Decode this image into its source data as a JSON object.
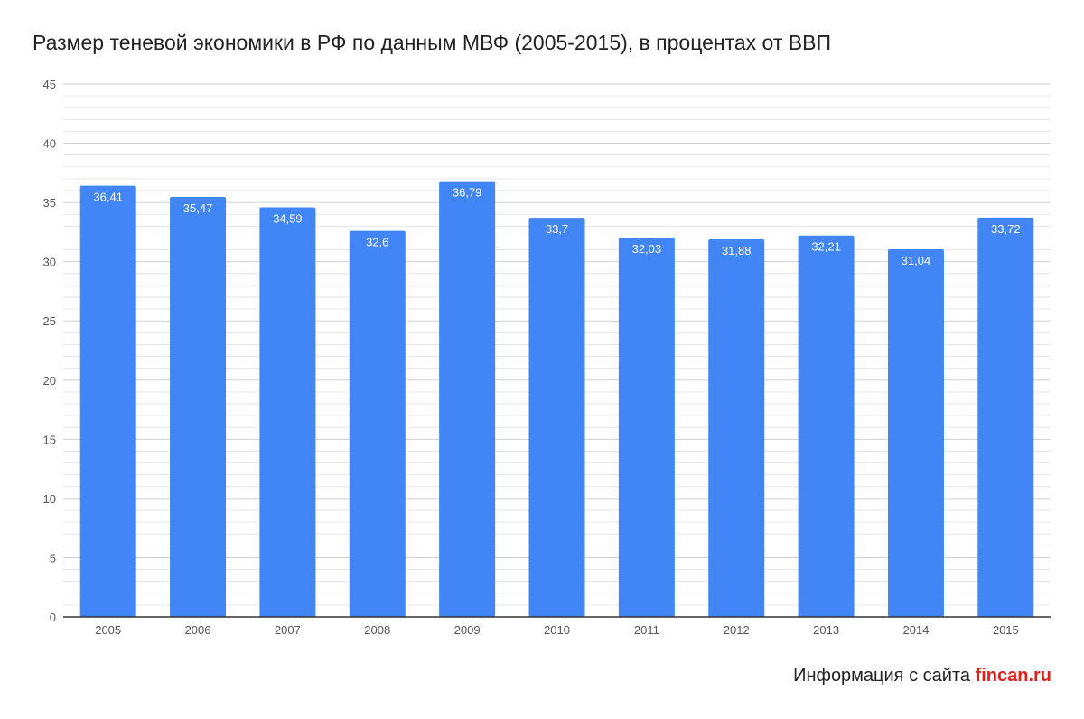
{
  "chart_data": {
    "type": "bar",
    "title": "Размер теневой экономики в РФ по данным МВФ (2005-2015), в процентах от ВВП",
    "categories": [
      "2005",
      "2006",
      "2007",
      "2008",
      "2009",
      "2010",
      "2011",
      "2012",
      "2013",
      "2014",
      "2015"
    ],
    "values": [
      36.41,
      35.47,
      34.59,
      32.6,
      36.79,
      33.7,
      32.03,
      31.88,
      32.21,
      31.04,
      33.72
    ],
    "data_labels": [
      "36,41",
      "35,47",
      "34,59",
      "32,6",
      "36,79",
      "33,7",
      "32,03",
      "31,88",
      "32,21",
      "31,04",
      "33,72"
    ],
    "ylim": [
      0,
      45
    ],
    "yticks": [
      "0",
      "5",
      "10",
      "15",
      "20",
      "25",
      "30",
      "35",
      "40",
      "45"
    ],
    "xlabel": "",
    "ylabel": "",
    "grid": true,
    "legend": "none",
    "colors": {
      "bar": "#4285f4",
      "major_grid": "#d0d0d0",
      "minor_grid": "#e6e6e6",
      "axis": "#333333"
    }
  },
  "footer": {
    "prefix": "Информация с сайта",
    "site": "fincan.ru",
    "site_color": "#e0211b"
  }
}
